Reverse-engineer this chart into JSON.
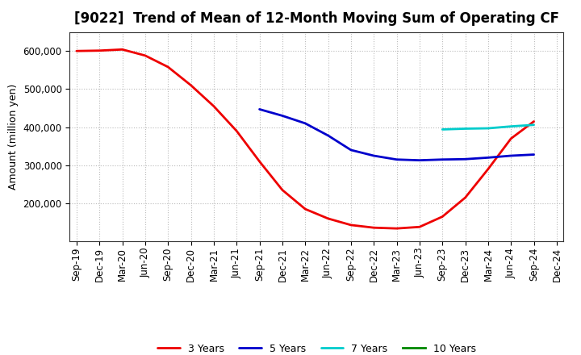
{
  "title": "[9022]  Trend of Mean of 12-Month Moving Sum of Operating CF",
  "ylabel": "Amount (million yen)",
  "background_color": "#ffffff",
  "grid_color": "#bbbbbb",
  "x_labels": [
    "Sep-19",
    "Dec-19",
    "Mar-20",
    "Jun-20",
    "Sep-20",
    "Dec-20",
    "Mar-21",
    "Jun-21",
    "Sep-21",
    "Dec-21",
    "Mar-22",
    "Jun-22",
    "Sep-22",
    "Dec-22",
    "Mar-23",
    "Jun-23",
    "Sep-23",
    "Dec-23",
    "Mar-24",
    "Jun-24",
    "Sep-24",
    "Dec-24"
  ],
  "series": {
    "3 Years": {
      "color": "#ee0000",
      "x_indices": [
        0,
        1,
        2,
        3,
        4,
        5,
        6,
        7,
        8,
        9,
        10,
        11,
        12,
        13,
        14,
        15,
        16,
        17,
        18,
        19,
        20
      ],
      "values": [
        600000,
        601000,
        604000,
        588000,
        558000,
        510000,
        455000,
        390000,
        310000,
        235000,
        185000,
        160000,
        143000,
        136000,
        134000,
        138000,
        165000,
        215000,
        290000,
        370000,
        415000
      ]
    },
    "5 Years": {
      "color": "#0000cc",
      "x_indices": [
        8,
        9,
        10,
        11,
        12,
        13,
        14,
        15,
        16,
        17,
        18,
        19,
        20
      ],
      "values": [
        447000,
        430000,
        410000,
        378000,
        340000,
        325000,
        315000,
        313000,
        315000,
        316000,
        320000,
        325000,
        328000
      ]
    },
    "7 Years": {
      "color": "#00cccc",
      "x_indices": [
        16,
        17,
        18,
        19,
        20
      ],
      "values": [
        394000,
        396000,
        397000,
        402000,
        406000
      ]
    },
    "10 Years": {
      "color": "#008800",
      "x_indices": [],
      "values": []
    }
  },
  "ylim": [
    100000,
    650000
  ],
  "yticks": [
    200000,
    300000,
    400000,
    500000,
    600000
  ],
  "title_fontsize": 12,
  "legend_fontsize": 9,
  "axis_label_fontsize": 9,
  "tick_fontsize": 8.5,
  "line_width": 2.0
}
